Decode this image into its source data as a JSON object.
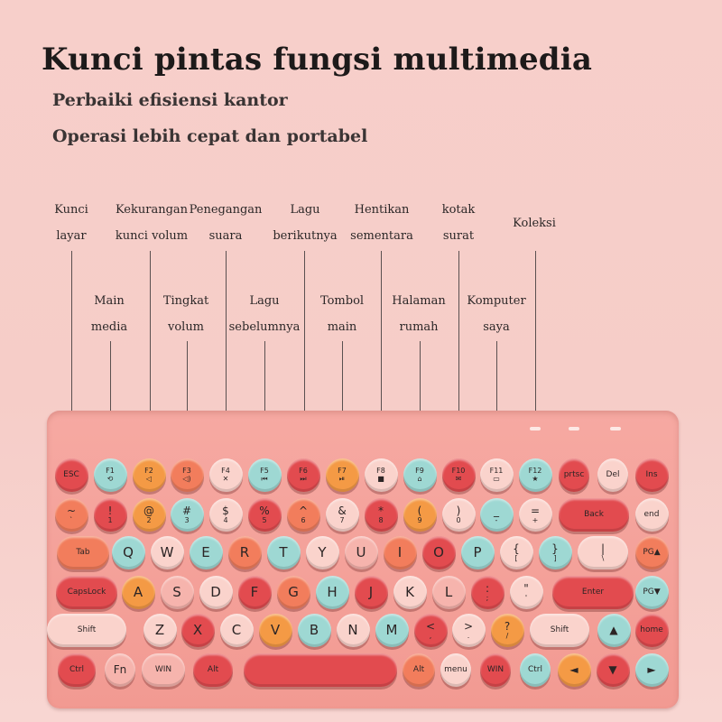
{
  "title": "Kunci pintas fungsi multimedia",
  "subtitles": [
    "Perbaiki efisiensi kantor",
    "Operasi lebih cepat dan portabel"
  ],
  "callouts": {
    "top": [
      {
        "line1": "Kunci",
        "line2": "layar"
      },
      {
        "line1": "Kekurangan",
        "line2": "kunci volum"
      },
      {
        "line1": "Penegangan",
        "line2": "suara"
      },
      {
        "line1": "Lagu",
        "line2": "berikutnya"
      },
      {
        "line1": "Hentikan",
        "line2": "sementara"
      },
      {
        "line1": "kotak",
        "line2": "surat"
      },
      {
        "line1": "Koleksi",
        "line2": ""
      }
    ],
    "bottom": [
      {
        "line1": "Main",
        "line2": "media"
      },
      {
        "line1": "Tingkat",
        "line2": "volum"
      },
      {
        "line1": "Lagu",
        "line2": "sebelumnya"
      },
      {
        "line1": "Tombol",
        "line2": "main"
      },
      {
        "line1": "Halaman",
        "line2": "rumah"
      },
      {
        "line1": "Komputer",
        "line2": "saya"
      }
    ]
  },
  "colors": {
    "red": "#e24b4f",
    "coral": "#f27d5c",
    "orange": "#f49a45",
    "pink": "#f6b4ad",
    "light_pink": "#fad3cc",
    "teal": "#9ed8d3",
    "peach": "#f8c3a8",
    "board": "#f4a49d"
  },
  "keyboard": {
    "rows": [
      [
        {
          "main": "ESC",
          "sub": "",
          "color": "red"
        },
        {
          "main": "F1",
          "sub": "⟲",
          "color": "teal"
        },
        {
          "main": "F2",
          "sub": "◁",
          "color": "orange"
        },
        {
          "main": "F3",
          "sub": "◁)",
          "color": "coral"
        },
        {
          "main": "F4",
          "sub": "✕",
          "color": "light_pink"
        },
        {
          "main": "F5",
          "sub": "⏮",
          "color": "teal"
        },
        {
          "main": "F6",
          "sub": "⏭",
          "color": "red"
        },
        {
          "main": "F7",
          "sub": "⏯",
          "color": "orange"
        },
        {
          "main": "F8",
          "sub": "■",
          "color": "light_pink"
        },
        {
          "main": "F9",
          "sub": "⌂",
          "color": "teal"
        },
        {
          "main": "F10",
          "sub": "✉",
          "color": "red"
        },
        {
          "main": "F11",
          "sub": "▭",
          "color": "light_pink"
        },
        {
          "main": "F12",
          "sub": "★",
          "color": "teal"
        },
        {
          "main": "prtsc",
          "sub": "",
          "color": "red"
        },
        {
          "main": "Del",
          "sub": "",
          "color": "light_pink"
        },
        {
          "main": "Ins",
          "sub": "",
          "color": "red"
        }
      ],
      [
        {
          "main": "~",
          "sub": "`",
          "color": "coral"
        },
        {
          "main": "!",
          "sub": "1",
          "color": "red"
        },
        {
          "main": "@",
          "sub": "2",
          "color": "orange"
        },
        {
          "main": "#",
          "sub": "3",
          "color": "teal"
        },
        {
          "main": "$",
          "sub": "4",
          "color": "light_pink"
        },
        {
          "main": "%",
          "sub": "5",
          "color": "red"
        },
        {
          "main": "^",
          "sub": "6",
          "color": "coral"
        },
        {
          "main": "&",
          "sub": "7",
          "color": "light_pink"
        },
        {
          "main": "*",
          "sub": "8",
          "color": "red"
        },
        {
          "main": "(",
          "sub": "9",
          "color": "orange"
        },
        {
          "main": ")",
          "sub": "0",
          "color": "light_pink"
        },
        {
          "main": "_",
          "sub": "-",
          "color": "teal"
        },
        {
          "main": "=",
          "sub": "+",
          "color": "light_pink"
        },
        {
          "main": "Back",
          "sub": "",
          "color": "red"
        },
        {
          "main": "end",
          "sub": "",
          "color": "light_pink"
        }
      ],
      [
        {
          "main": "Tab",
          "sub": "",
          "color": "coral"
        },
        {
          "main": "Q",
          "sub": "",
          "color": "teal"
        },
        {
          "main": "W",
          "sub": "",
          "color": "light_pink"
        },
        {
          "main": "E",
          "sub": "",
          "color": "teal"
        },
        {
          "main": "R",
          "sub": "",
          "color": "coral"
        },
        {
          "main": "T",
          "sub": "",
          "color": "teal"
        },
        {
          "main": "Y",
          "sub": "",
          "color": "light_pink"
        },
        {
          "main": "U",
          "sub": "",
          "color": "pink"
        },
        {
          "main": "I",
          "sub": "",
          "color": "coral"
        },
        {
          "main": "O",
          "sub": "",
          "color": "red"
        },
        {
          "main": "P",
          "sub": "",
          "color": "teal"
        },
        {
          "main": "{",
          "sub": "[",
          "color": "light_pink"
        },
        {
          "main": "}",
          "sub": "]",
          "color": "teal"
        },
        {
          "main": "|",
          "sub": "\\",
          "color": "light_pink"
        },
        {
          "main": "PG▲",
          "sub": "",
          "color": "coral"
        }
      ],
      [
        {
          "main": "CapsLock",
          "sub": "",
          "color": "red"
        },
        {
          "main": "A",
          "sub": "",
          "color": "orange"
        },
        {
          "main": "S",
          "sub": "",
          "color": "pink"
        },
        {
          "main": "D",
          "sub": "",
          "color": "light_pink"
        },
        {
          "main": "F",
          "sub": "",
          "color": "red"
        },
        {
          "main": "G",
          "sub": "",
          "color": "coral"
        },
        {
          "main": "H",
          "sub": "",
          "color": "teal"
        },
        {
          "main": "J",
          "sub": "",
          "color": "red"
        },
        {
          "main": "K",
          "sub": "",
          "color": "light_pink"
        },
        {
          "main": "L",
          "sub": "",
          "color": "pink"
        },
        {
          "main": ":",
          "sub": ";",
          "color": "red"
        },
        {
          "main": "\"",
          "sub": "'",
          "color": "light_pink"
        },
        {
          "main": "Enter",
          "sub": "",
          "color": "red"
        },
        {
          "main": "PG▼",
          "sub": "",
          "color": "teal"
        }
      ],
      [
        {
          "main": "Shift",
          "sub": "",
          "color": "light_pink"
        },
        {
          "main": "Z",
          "sub": "",
          "color": "light_pink"
        },
        {
          "main": "X",
          "sub": "",
          "color": "red"
        },
        {
          "main": "C",
          "sub": "",
          "color": "light_pink"
        },
        {
          "main": "V",
          "sub": "",
          "color": "orange"
        },
        {
          "main": "B",
          "sub": "",
          "color": "teal"
        },
        {
          "main": "N",
          "sub": "",
          "color": "light_pink"
        },
        {
          "main": "M",
          "sub": "",
          "color": "teal"
        },
        {
          "main": "<",
          "sub": ",",
          "color": "red"
        },
        {
          "main": ">",
          "sub": ".",
          "color": "light_pink"
        },
        {
          "main": "?",
          "sub": "/",
          "color": "orange"
        },
        {
          "main": "Shift",
          "sub": "",
          "color": "light_pink"
        },
        {
          "main": "▲",
          "sub": "",
          "color": "teal"
        },
        {
          "main": "home",
          "sub": "",
          "color": "red"
        }
      ],
      [
        {
          "main": "Ctrl",
          "sub": "",
          "color": "red"
        },
        {
          "main": "Fn",
          "sub": "",
          "color": "pink"
        },
        {
          "main": "WIN",
          "sub": "",
          "color": "pink"
        },
        {
          "main": "Alt",
          "sub": "",
          "color": "red"
        },
        {
          "main": "",
          "sub": "",
          "color": "red"
        },
        {
          "main": "Alt",
          "sub": "",
          "color": "coral"
        },
        {
          "main": "menu",
          "sub": "",
          "color": "light_pink"
        },
        {
          "main": "WIN",
          "sub": "",
          "color": "red"
        },
        {
          "main": "Ctrl",
          "sub": "",
          "color": "teal"
        },
        {
          "main": "◄",
          "sub": "",
          "color": "orange"
        },
        {
          "main": "▼",
          "sub": "",
          "color": "red"
        },
        {
          "main": "►",
          "sub": "",
          "color": "teal"
        }
      ]
    ]
  }
}
